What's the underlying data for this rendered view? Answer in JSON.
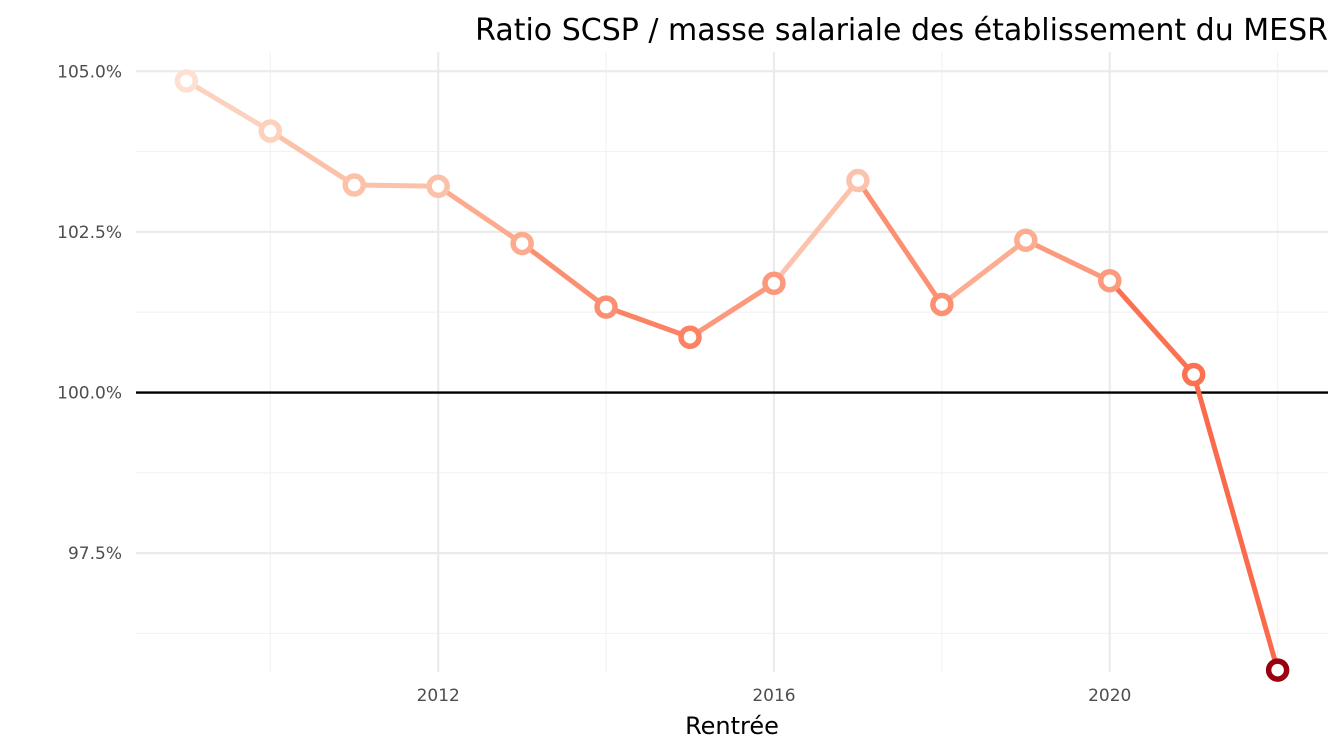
{
  "chart_data": {
    "type": "line",
    "title": "Ratio SCSP / masse salariale des établissement du MESR",
    "xlabel": "Rentrée",
    "ylabel": "",
    "x_ticks": [
      2012,
      2016,
      2020
    ],
    "y_ticks": [
      97.5,
      100.0,
      102.5,
      105.0
    ],
    "y_tick_labels": [
      "97.5%",
      "100.0%",
      "102.5%",
      "105.0%"
    ],
    "xlim": [
      2008.4,
      2022.6
    ],
    "ylim": [
      95.65,
      105.3
    ],
    "reference_line": 100.0,
    "grid": true,
    "legend": "none",
    "series": [
      {
        "x": [
          2009,
          2010,
          2011,
          2012,
          2013,
          2014,
          2015,
          2016,
          2017,
          2018,
          2019,
          2020,
          2021,
          2022
        ],
        "values": [
          104.85,
          104.07,
          103.23,
          103.21,
          102.32,
          101.33,
          100.86,
          101.7,
          103.3,
          101.37,
          102.37,
          101.74,
          100.28,
          95.68
        ]
      }
    ],
    "colors": {
      "gradient_low": "#fee0d2",
      "gradient_mid": "#fcbba1",
      "gradient_high": "#fb6a4a",
      "last_point": "#99000d",
      "reference_line": "#000000",
      "grid": "#ebebeb"
    }
  }
}
